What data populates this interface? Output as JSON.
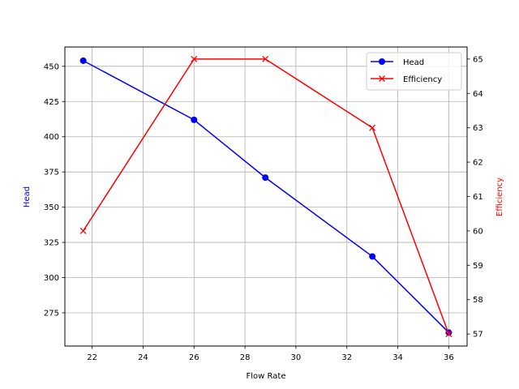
{
  "chart_data": {
    "type": "line",
    "title": "",
    "xlabel": "Flow Rate",
    "ylabel": "Head",
    "y2label": "Efficiency",
    "x": [
      21.65,
      26.0,
      28.8,
      33.0,
      36.0
    ],
    "series": [
      {
        "name": "Head",
        "axis": "left",
        "marker": "o",
        "color": "#0000ff",
        "values": [
          454,
          412,
          371,
          315,
          261
        ]
      },
      {
        "name": "Efficiency",
        "axis": "right",
        "marker": "x",
        "color": "#ff0000",
        "values": [
          60,
          65,
          65,
          63,
          57
        ]
      }
    ],
    "xlim": [
      20.93,
      36.72
    ],
    "ylim": [
      251.4,
      463.7
    ],
    "y2lim": [
      56.65,
      65.35
    ],
    "xticks": [
      22,
      24,
      26,
      28,
      30,
      32,
      34,
      36
    ],
    "yticks": [
      275,
      300,
      325,
      350,
      375,
      400,
      425,
      450
    ],
    "y2ticks": [
      57,
      58,
      59,
      60,
      61,
      62,
      63,
      64,
      65
    ],
    "grid": true,
    "legend_position": "upper right"
  },
  "legend": {
    "items": [
      {
        "label": "Head",
        "color": "#0000ff"
      },
      {
        "label": "Efficiency",
        "color": "#ff0000"
      }
    ]
  }
}
